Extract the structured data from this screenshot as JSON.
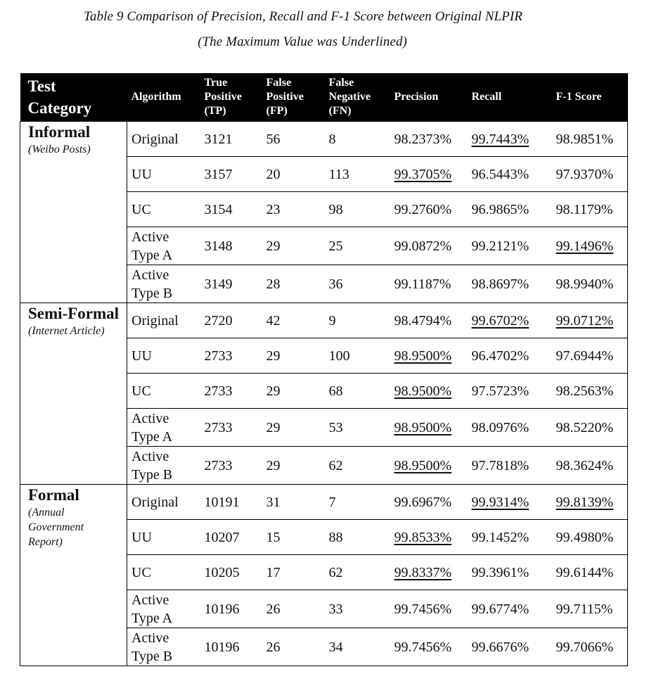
{
  "caption": {
    "line1": "Table 9 Comparison of Precision, Recall and F-1 Score between Original NLPIR",
    "line2": "(The Maximum Value was Underlined)"
  },
  "headers": {
    "test_category": "Test Category",
    "algorithm": "Algorithm",
    "tp": "True Positive (TP)",
    "fp": "False Positive (FP)",
    "fn": "False Negative (FN)",
    "precision": "Precision",
    "recall": "Recall",
    "f1": "F-1 Score"
  },
  "groups": [
    {
      "name": "Informal",
      "sub": "(Weibo Posts)",
      "rows": [
        {
          "alg": "Original",
          "tp": "3121",
          "fp": "56",
          "fn": "8",
          "precision": "98.2373%",
          "recall": "99.7443%",
          "f1": "98.9851%",
          "u": [
            "recall"
          ]
        },
        {
          "alg": "UU",
          "tp": "3157",
          "fp": "20",
          "fn": "113",
          "precision": "99.3705%",
          "recall": "96.5443%",
          "f1": "97.9370%",
          "u": [
            "precision"
          ]
        },
        {
          "alg": "UC",
          "tp": "3154",
          "fp": "23",
          "fn": "98",
          "precision": "99.2760%",
          "recall": "96.9865%",
          "f1": "98.1179%",
          "u": []
        },
        {
          "alg": "Active Type A",
          "tp": "3148",
          "fp": "29",
          "fn": "25",
          "precision": "99.0872%",
          "recall": "99.2121%",
          "f1": "99.1496%",
          "u": [
            "f1"
          ]
        },
        {
          "alg": "Active Type B",
          "tp": "3149",
          "fp": "28",
          "fn": "36",
          "precision": "99.1187%",
          "recall": "98.8697%",
          "f1": "98.9940%",
          "u": []
        }
      ]
    },
    {
      "name": "Semi-Formal",
      "sub": "(Internet Article)",
      "rows": [
        {
          "alg": "Original",
          "tp": "2720",
          "fp": "42",
          "fn": "9",
          "precision": "98.4794%",
          "recall": "99.6702%",
          "f1": "99.0712%",
          "u": [
            "recall",
            "f1"
          ]
        },
        {
          "alg": "UU",
          "tp": "2733",
          "fp": "29",
          "fn": "100",
          "precision": "98.9500%",
          "recall": "96.4702%",
          "f1": "97.6944%",
          "u": [
            "precision"
          ]
        },
        {
          "alg": "UC",
          "tp": "2733",
          "fp": "29",
          "fn": "68",
          "precision": "98.9500%",
          "recall": "97.5723%",
          "f1": "98.2563%",
          "u": [
            "precision"
          ]
        },
        {
          "alg": "Active Type A",
          "tp": "2733",
          "fp": "29",
          "fn": "53",
          "precision": "98.9500%",
          "recall": "98.0976%",
          "f1": "98.5220%",
          "u": [
            "precision"
          ]
        },
        {
          "alg": "Active Type B",
          "tp": "2733",
          "fp": "29",
          "fn": "62",
          "precision": "98.9500%",
          "recall": "97.7818%",
          "f1": "98.3624%",
          "u": [
            "precision"
          ]
        }
      ]
    },
    {
      "name": "Formal",
      "sub": "(Annual Government Report)",
      "rows": [
        {
          "alg": "Original",
          "tp": "10191",
          "fp": "31",
          "fn": "7",
          "precision": "99.6967%",
          "recall": "99.9314%",
          "f1": "99.8139%",
          "u": [
            "recall",
            "f1"
          ]
        },
        {
          "alg": "UU",
          "tp": "10207",
          "fp": "15",
          "fn": "88",
          "precision": "99.8533%",
          "recall": "99.1452%",
          "f1": "99.4980%",
          "u": [
            "precision"
          ]
        },
        {
          "alg": "UC",
          "tp": "10205",
          "fp": "17",
          "fn": "62",
          "precision": "99.8337%",
          "recall": "99.3961%",
          "f1": "99.6144%",
          "u": [
            "precision"
          ]
        },
        {
          "alg": "Active Type A",
          "tp": "10196",
          "fp": "26",
          "fn": "33",
          "precision": "99.7456%",
          "recall": "99.6774%",
          "f1": "99.7115%",
          "u": []
        },
        {
          "alg": "Active Type B",
          "tp": "10196",
          "fp": "26",
          "fn": "34",
          "precision": "99.7456%",
          "recall": "99.6676%",
          "f1": "99.7066%",
          "u": []
        }
      ]
    }
  ]
}
